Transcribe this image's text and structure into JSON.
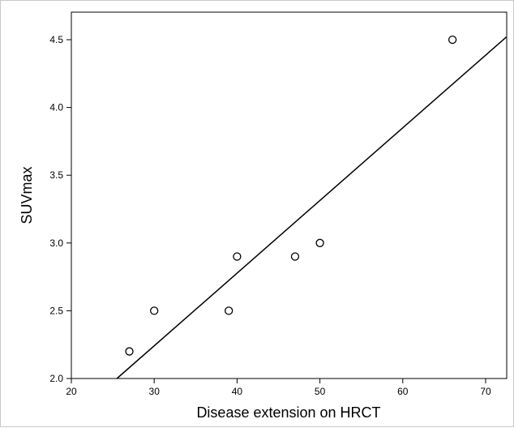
{
  "chart_data": {
    "type": "scatter",
    "xlabel": "Disease extension on HRCT",
    "ylabel": "SUVmax",
    "xlim": [
      20,
      72.5
    ],
    "ylim": [
      2.0,
      4.6
    ],
    "x_ticks": [
      20,
      30,
      40,
      50,
      60,
      70
    ],
    "y_ticks": [
      2.0,
      2.5,
      3.0,
      3.5,
      4.0,
      4.5
    ],
    "x_tick_labels": [
      "20",
      "30",
      "40",
      "50",
      "60",
      "70"
    ],
    "y_tick_labels": [
      "2.0",
      "2.5",
      "3.0",
      "3.5",
      "4.0",
      "4.5"
    ],
    "grid": false,
    "series": [
      {
        "x": [
          27,
          30,
          39,
          40,
          47,
          50,
          66
        ],
        "y": [
          2.2,
          2.5,
          2.5,
          2.9,
          2.9,
          3.0,
          4.5
        ],
        "marker": "open-circle"
      }
    ],
    "fit_line": {
      "x": [
        25.5,
        72.5
      ],
      "y": [
        2.0,
        4.52
      ]
    }
  }
}
